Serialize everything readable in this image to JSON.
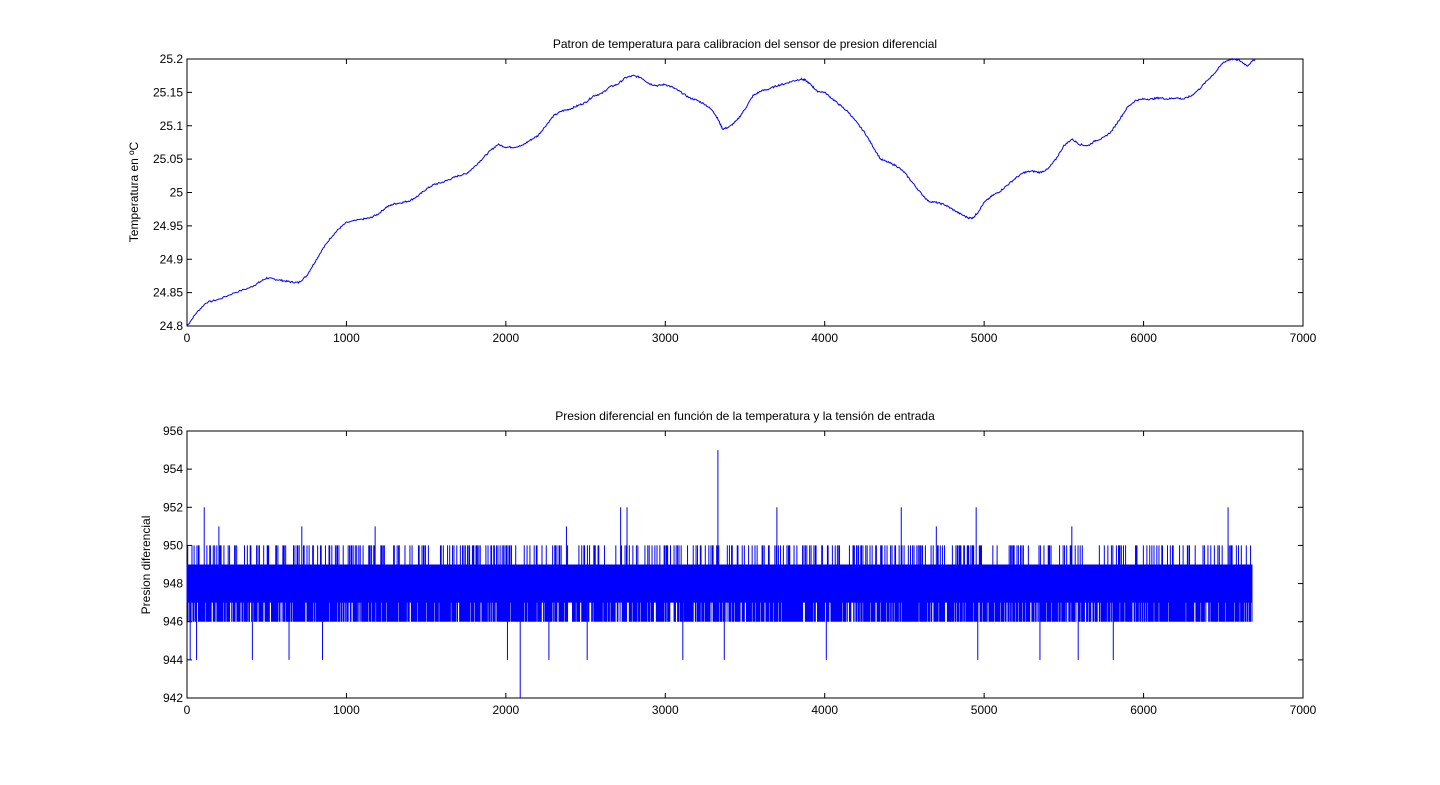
{
  "chart_data": [
    {
      "type": "line",
      "title": "Patron de temperatura para calibracion del sensor de presion diferencial",
      "xlabel": "",
      "ylabel": "Temperatura en ºC",
      "xlim": [
        0,
        7000
      ],
      "ylim": [
        24.8,
        25.2
      ],
      "xticks": [
        "0",
        "1000",
        "2000",
        "3000",
        "4000",
        "5000",
        "6000",
        "7000"
      ],
      "yticks": [
        "24.8",
        "24.85",
        "24.9",
        "24.95",
        "25",
        "25.05",
        "25.1",
        "25.15",
        "25.2"
      ],
      "grid": false,
      "color": "#0000ff",
      "series": [
        {
          "x": [
            0,
            60,
            120,
            200,
            300,
            400,
            450,
            500,
            550,
            600,
            650,
            700,
            750,
            800,
            850,
            900,
            950,
            1000,
            1100,
            1150,
            1200,
            1250,
            1300,
            1350,
            1400,
            1450,
            1500,
            1550,
            1600,
            1650,
            1700,
            1750,
            1800,
            1850,
            1900,
            1950,
            2000,
            2050,
            2100,
            2150,
            2200,
            2250,
            2300,
            2350,
            2400,
            2450,
            2500,
            2550,
            2600,
            2650,
            2700,
            2750,
            2800,
            2850,
            2900,
            2950,
            3000,
            3050,
            3100,
            3150,
            3200,
            3250,
            3300,
            3330,
            3360,
            3400,
            3450,
            3500,
            3550,
            3600,
            3650,
            3700,
            3750,
            3800,
            3850,
            3880,
            3920,
            3950,
            4000,
            4050,
            4100,
            4150,
            4200,
            4250,
            4300,
            4350,
            4400,
            4450,
            4500,
            4550,
            4600,
            4650,
            4700,
            4750,
            4800,
            4850,
            4900,
            4930,
            4960,
            5000,
            5050,
            5100,
            5150,
            5200,
            5250,
            5300,
            5350,
            5400,
            5450,
            5500,
            5550,
            5600,
            5650,
            5700,
            5750,
            5800,
            5850,
            5900,
            5950,
            6000,
            6050,
            6100,
            6150,
            6200,
            6250,
            6300,
            6350,
            6400,
            6450,
            6500,
            6550,
            6600,
            6650,
            6700
          ],
          "y": [
            24.8,
            24.82,
            24.835,
            24.84,
            24.85,
            24.858,
            24.865,
            24.872,
            24.87,
            24.868,
            24.866,
            24.865,
            24.875,
            24.895,
            24.915,
            24.932,
            24.945,
            24.955,
            24.96,
            24.962,
            24.968,
            24.978,
            24.983,
            24.985,
            24.988,
            24.995,
            25.005,
            25.012,
            25.015,
            25.02,
            25.025,
            25.028,
            25.038,
            25.05,
            25.062,
            25.072,
            25.068,
            25.068,
            25.07,
            25.078,
            25.085,
            25.1,
            25.115,
            25.122,
            25.125,
            25.13,
            25.135,
            25.145,
            25.148,
            25.158,
            25.162,
            25.172,
            25.175,
            25.172,
            25.163,
            25.16,
            25.162,
            25.157,
            25.15,
            25.142,
            25.138,
            25.132,
            25.122,
            25.11,
            25.095,
            25.098,
            25.108,
            25.125,
            25.145,
            25.152,
            25.155,
            25.16,
            25.163,
            25.167,
            25.17,
            25.168,
            25.16,
            25.152,
            25.15,
            25.14,
            25.13,
            25.12,
            25.105,
            25.09,
            25.07,
            25.05,
            25.045,
            25.04,
            25.03,
            25.015,
            25.0,
            24.987,
            24.985,
            24.982,
            24.975,
            24.968,
            24.962,
            24.962,
            24.97,
            24.985,
            24.995,
            25.002,
            25.012,
            25.022,
            25.03,
            25.032,
            25.03,
            25.035,
            25.05,
            25.07,
            25.08,
            25.072,
            25.07,
            25.078,
            25.082,
            25.092,
            25.11,
            25.128,
            25.138,
            25.14,
            25.14,
            25.142,
            25.14,
            25.142,
            25.14,
            25.145,
            25.155,
            25.168,
            25.18,
            25.195,
            25.2,
            25.198,
            25.19,
            25.2
          ]
        }
      ]
    },
    {
      "type": "line",
      "title": "Presion diferencial en función de la temperatura y la tensión de entrada",
      "xlabel": "",
      "ylabel": "Presion diferencial",
      "xlim": [
        0,
        7000
      ],
      "ylim": [
        942,
        956
      ],
      "xticks": [
        "0",
        "1000",
        "2000",
        "3000",
        "4000",
        "5000",
        "6000",
        "7000"
      ],
      "yticks": [
        "942",
        "944",
        "946",
        "948",
        "950",
        "952",
        "954",
        "956"
      ],
      "grid": false,
      "color": "#0000ff",
      "series": [
        {
          "x_range": [
            0,
            6680
          ],
          "band_center": 947.5,
          "band_dense": [
            946,
            949
          ],
          "band_outer": [
            946,
            950
          ],
          "spikes_up": [
            {
              "x": 108,
              "y": 952
            },
            {
              "x": 200,
              "y": 951
            },
            {
              "x": 720,
              "y": 951
            },
            {
              "x": 1180,
              "y": 951
            },
            {
              "x": 2380,
              "y": 951
            },
            {
              "x": 2720,
              "y": 952
            },
            {
              "x": 2760,
              "y": 952
            },
            {
              "x": 3330,
              "y": 955
            },
            {
              "x": 3700,
              "y": 952
            },
            {
              "x": 4480,
              "y": 952
            },
            {
              "x": 4700,
              "y": 951
            },
            {
              "x": 4950,
              "y": 952
            },
            {
              "x": 5550,
              "y": 951
            },
            {
              "x": 6530,
              "y": 952
            }
          ],
          "spikes_down": [
            {
              "x": 20,
              "y": 944
            },
            {
              "x": 60,
              "y": 944
            },
            {
              "x": 410,
              "y": 944
            },
            {
              "x": 640,
              "y": 944
            },
            {
              "x": 850,
              "y": 944
            },
            {
              "x": 2010,
              "y": 944
            },
            {
              "x": 2090,
              "y": 942
            },
            {
              "x": 2270,
              "y": 944
            },
            {
              "x": 2510,
              "y": 944
            },
            {
              "x": 3110,
              "y": 944
            },
            {
              "x": 3370,
              "y": 944
            },
            {
              "x": 4010,
              "y": 944
            },
            {
              "x": 4960,
              "y": 944
            },
            {
              "x": 5350,
              "y": 944
            },
            {
              "x": 5590,
              "y": 944
            },
            {
              "x": 5810,
              "y": 944
            }
          ]
        }
      ]
    }
  ]
}
